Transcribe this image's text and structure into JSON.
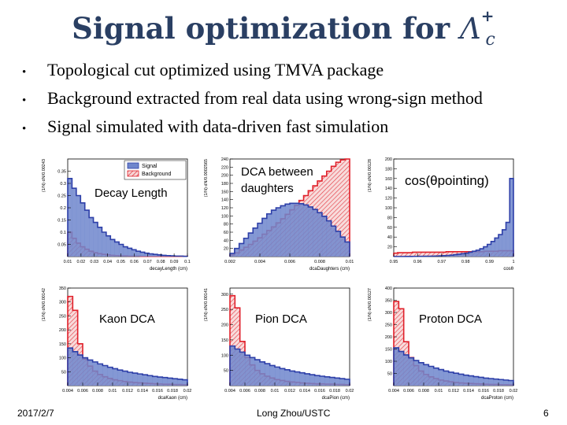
{
  "slide": {
    "title": {
      "text": "Signal optimization for ",
      "particle": "Λ",
      "sup": "+",
      "sub": "c"
    },
    "bullets": [
      "Topological cut optimized using TMVA package",
      "Background extracted from real data using wrong-sign method",
      "Signal simulated with data-driven fast simulation"
    ],
    "legend": {
      "signal": "Signal",
      "background": "Background"
    },
    "footer": {
      "date": "2017/2/7",
      "author": "Long Zhou/USTC",
      "page": "6"
    }
  },
  "colors": {
    "title": "#2a3f63",
    "signal_fill": "#6f86cc",
    "signal_line": "#2d3fa8",
    "background_line": "#e0202a"
  },
  "chart_data": [
    {
      "type": "histogram",
      "label": "Decay Length",
      "xlabel": "decayLength (cm)",
      "ylabel": "(1/N) dN/0.00243",
      "xlim": [
        0.01,
        0.1
      ],
      "xticks": [
        "0.01",
        "0.02",
        "0.03",
        "0.04",
        "0.05",
        "0.06",
        "0.07",
        "0.08",
        "0.09",
        "0.1"
      ],
      "ylim": [
        0,
        0.4
      ],
      "yticks": [
        "0.05",
        "0.1",
        "0.15",
        "0.2",
        "0.25",
        "0.3",
        "0.35"
      ],
      "signal": [
        0.32,
        0.28,
        0.25,
        0.22,
        0.19,
        0.16,
        0.14,
        0.12,
        0.1,
        0.085,
        0.07,
        0.06,
        0.05,
        0.04,
        0.034,
        0.028,
        0.022,
        0.018,
        0.014,
        0.011,
        0.009,
        0.007,
        0.005,
        0.004,
        0.003,
        0.002,
        0.002,
        0.001
      ],
      "background": [
        0.1,
        0.075,
        0.055,
        0.04,
        0.03,
        0.022,
        0.016,
        0.012,
        0.009,
        0.007,
        0.005,
        0.004,
        0.003,
        0.003,
        0.002,
        0.002,
        0.002,
        0.001,
        0.001,
        0.001,
        0.001,
        0.001,
        0.001,
        0.001,
        0.001,
        0.001,
        0.001,
        0.001
      ]
    },
    {
      "type": "histogram",
      "label": "DCA between daughters",
      "xlabel": "dcaDaughters (cm)",
      "ylabel": "(1/N) dN/0.0002565",
      "xlim": [
        0,
        0.01
      ],
      "xticks": [
        "0.002",
        "0.004",
        "0.006",
        "0.008",
        "0.01"
      ],
      "ylim": [
        0,
        240
      ],
      "yticks": [
        "20",
        "40",
        "60",
        "80",
        "100",
        "120",
        "140",
        "160",
        "180",
        "200",
        "220",
        "240"
      ],
      "signal": [
        8,
        20,
        32,
        45,
        58,
        70,
        82,
        94,
        105,
        114,
        120,
        125,
        129,
        131,
        131,
        130,
        127,
        122,
        116,
        108,
        99,
        88,
        75,
        62,
        48,
        36
      ],
      "background": [
        4,
        9,
        16,
        23,
        30,
        38,
        46,
        55,
        64,
        73,
        83,
        93,
        104,
        115,
        126,
        138,
        150,
        162,
        174,
        186,
        198,
        210,
        222,
        232,
        238,
        240
      ]
    },
    {
      "type": "histogram",
      "label": "cos(θpointing)",
      "xlabel": "cosθ",
      "ylabel": "(1/N) dN/0.00128",
      "xlim": [
        0.95,
        1
      ],
      "xticks": [
        "0.95",
        "0.96",
        "0.97",
        "0.98",
        "0.99",
        "1"
      ],
      "ylim": [
        0,
        200
      ],
      "yticks": [
        "20",
        "40",
        "60",
        "80",
        "100",
        "120",
        "140",
        "160",
        "180",
        "200"
      ],
      "signal": [
        0.2,
        0.2,
        0.2,
        0.3,
        0.3,
        0.4,
        0.5,
        0.6,
        0.7,
        0.8,
        1,
        1.2,
        1.5,
        1.9,
        2.4,
        3,
        4,
        5,
        6,
        7,
        9,
        11,
        13,
        16,
        20,
        25,
        31,
        38,
        45,
        55,
        70,
        160
      ],
      "background": [
        7,
        8,
        8,
        8,
        8,
        9,
        9,
        9,
        9,
        9,
        9,
        9,
        9,
        9,
        10,
        10,
        10,
        10,
        10,
        10,
        10,
        10,
        10,
        10,
        11,
        11,
        11,
        11,
        12,
        12,
        12,
        12
      ]
    },
    {
      "type": "histogram",
      "label": "Kaon DCA",
      "xlabel": "dcaKaon (cm)",
      "ylabel": "(1/N) dN/0.00142",
      "xlim": [
        0.004,
        0.02
      ],
      "xticks": [
        "0.004",
        "0.006",
        "0.008",
        "0.01",
        "0.012",
        "0.014",
        "0.016",
        "0.018",
        "0.02"
      ],
      "ylim": [
        0,
        350
      ],
      "yticks": [
        "50",
        "100",
        "150",
        "200",
        "250",
        "300",
        "350"
      ],
      "signal": [
        135,
        122,
        110,
        100,
        92,
        85,
        78,
        72,
        66,
        61,
        56,
        52,
        48,
        45,
        42,
        39,
        36,
        33,
        31,
        29,
        27,
        25,
        23,
        21
      ],
      "background": [
        320,
        270,
        150,
        95,
        70,
        52,
        40,
        32,
        26,
        21,
        18,
        15,
        13,
        11,
        10,
        9,
        8,
        7,
        6,
        5,
        5,
        4,
        4,
        3
      ]
    },
    {
      "type": "histogram",
      "label": "Pion DCA",
      "xlabel": "dcaPion (cm)",
      "ylabel": "(1/N) dN/0.00141",
      "xlim": [
        0.004,
        0.02
      ],
      "xticks": [
        "0.004",
        "0.006",
        "0.008",
        "0.01",
        "0.012",
        "0.014",
        "0.016",
        "0.018",
        "0.02"
      ],
      "ylim": [
        0,
        320
      ],
      "yticks": [
        "50",
        "100",
        "150",
        "200",
        "250",
        "300"
      ],
      "signal": [
        130,
        120,
        110,
        100,
        92,
        85,
        78,
        72,
        66,
        61,
        56,
        52,
        48,
        45,
        42,
        39,
        36,
        33,
        31,
        29,
        27,
        25,
        23,
        21
      ],
      "background": [
        295,
        255,
        145,
        92,
        68,
        50,
        39,
        31,
        25,
        20,
        17,
        14,
        12,
        11,
        9,
        8,
        7,
        6,
        6,
        5,
        5,
        4,
        4,
        3
      ]
    },
    {
      "type": "histogram",
      "label": "Proton DCA",
      "xlabel": "dcaProton (cm)",
      "ylabel": "(1/N) dN/0.00127",
      "xlim": [
        0.004,
        0.02
      ],
      "xticks": [
        "0.004",
        "0.006",
        "0.008",
        "0.01",
        "0.012",
        "0.014",
        "0.016",
        "0.018",
        "0.02"
      ],
      "ylim": [
        0,
        400
      ],
      "yticks": [
        "50",
        "100",
        "150",
        "200",
        "250",
        "300",
        "350",
        "400"
      ],
      "signal": [
        155,
        140,
        126,
        114,
        103,
        94,
        86,
        79,
        72,
        66,
        60,
        55,
        51,
        47,
        43,
        40,
        37,
        34,
        31,
        29,
        27,
        25,
        23,
        21
      ],
      "background": [
        345,
        315,
        180,
        115,
        82,
        60,
        46,
        36,
        29,
        23,
        19,
        16,
        13,
        11,
        10,
        9,
        8,
        7,
        6,
        5,
        5,
        4,
        4,
        3
      ]
    }
  ]
}
